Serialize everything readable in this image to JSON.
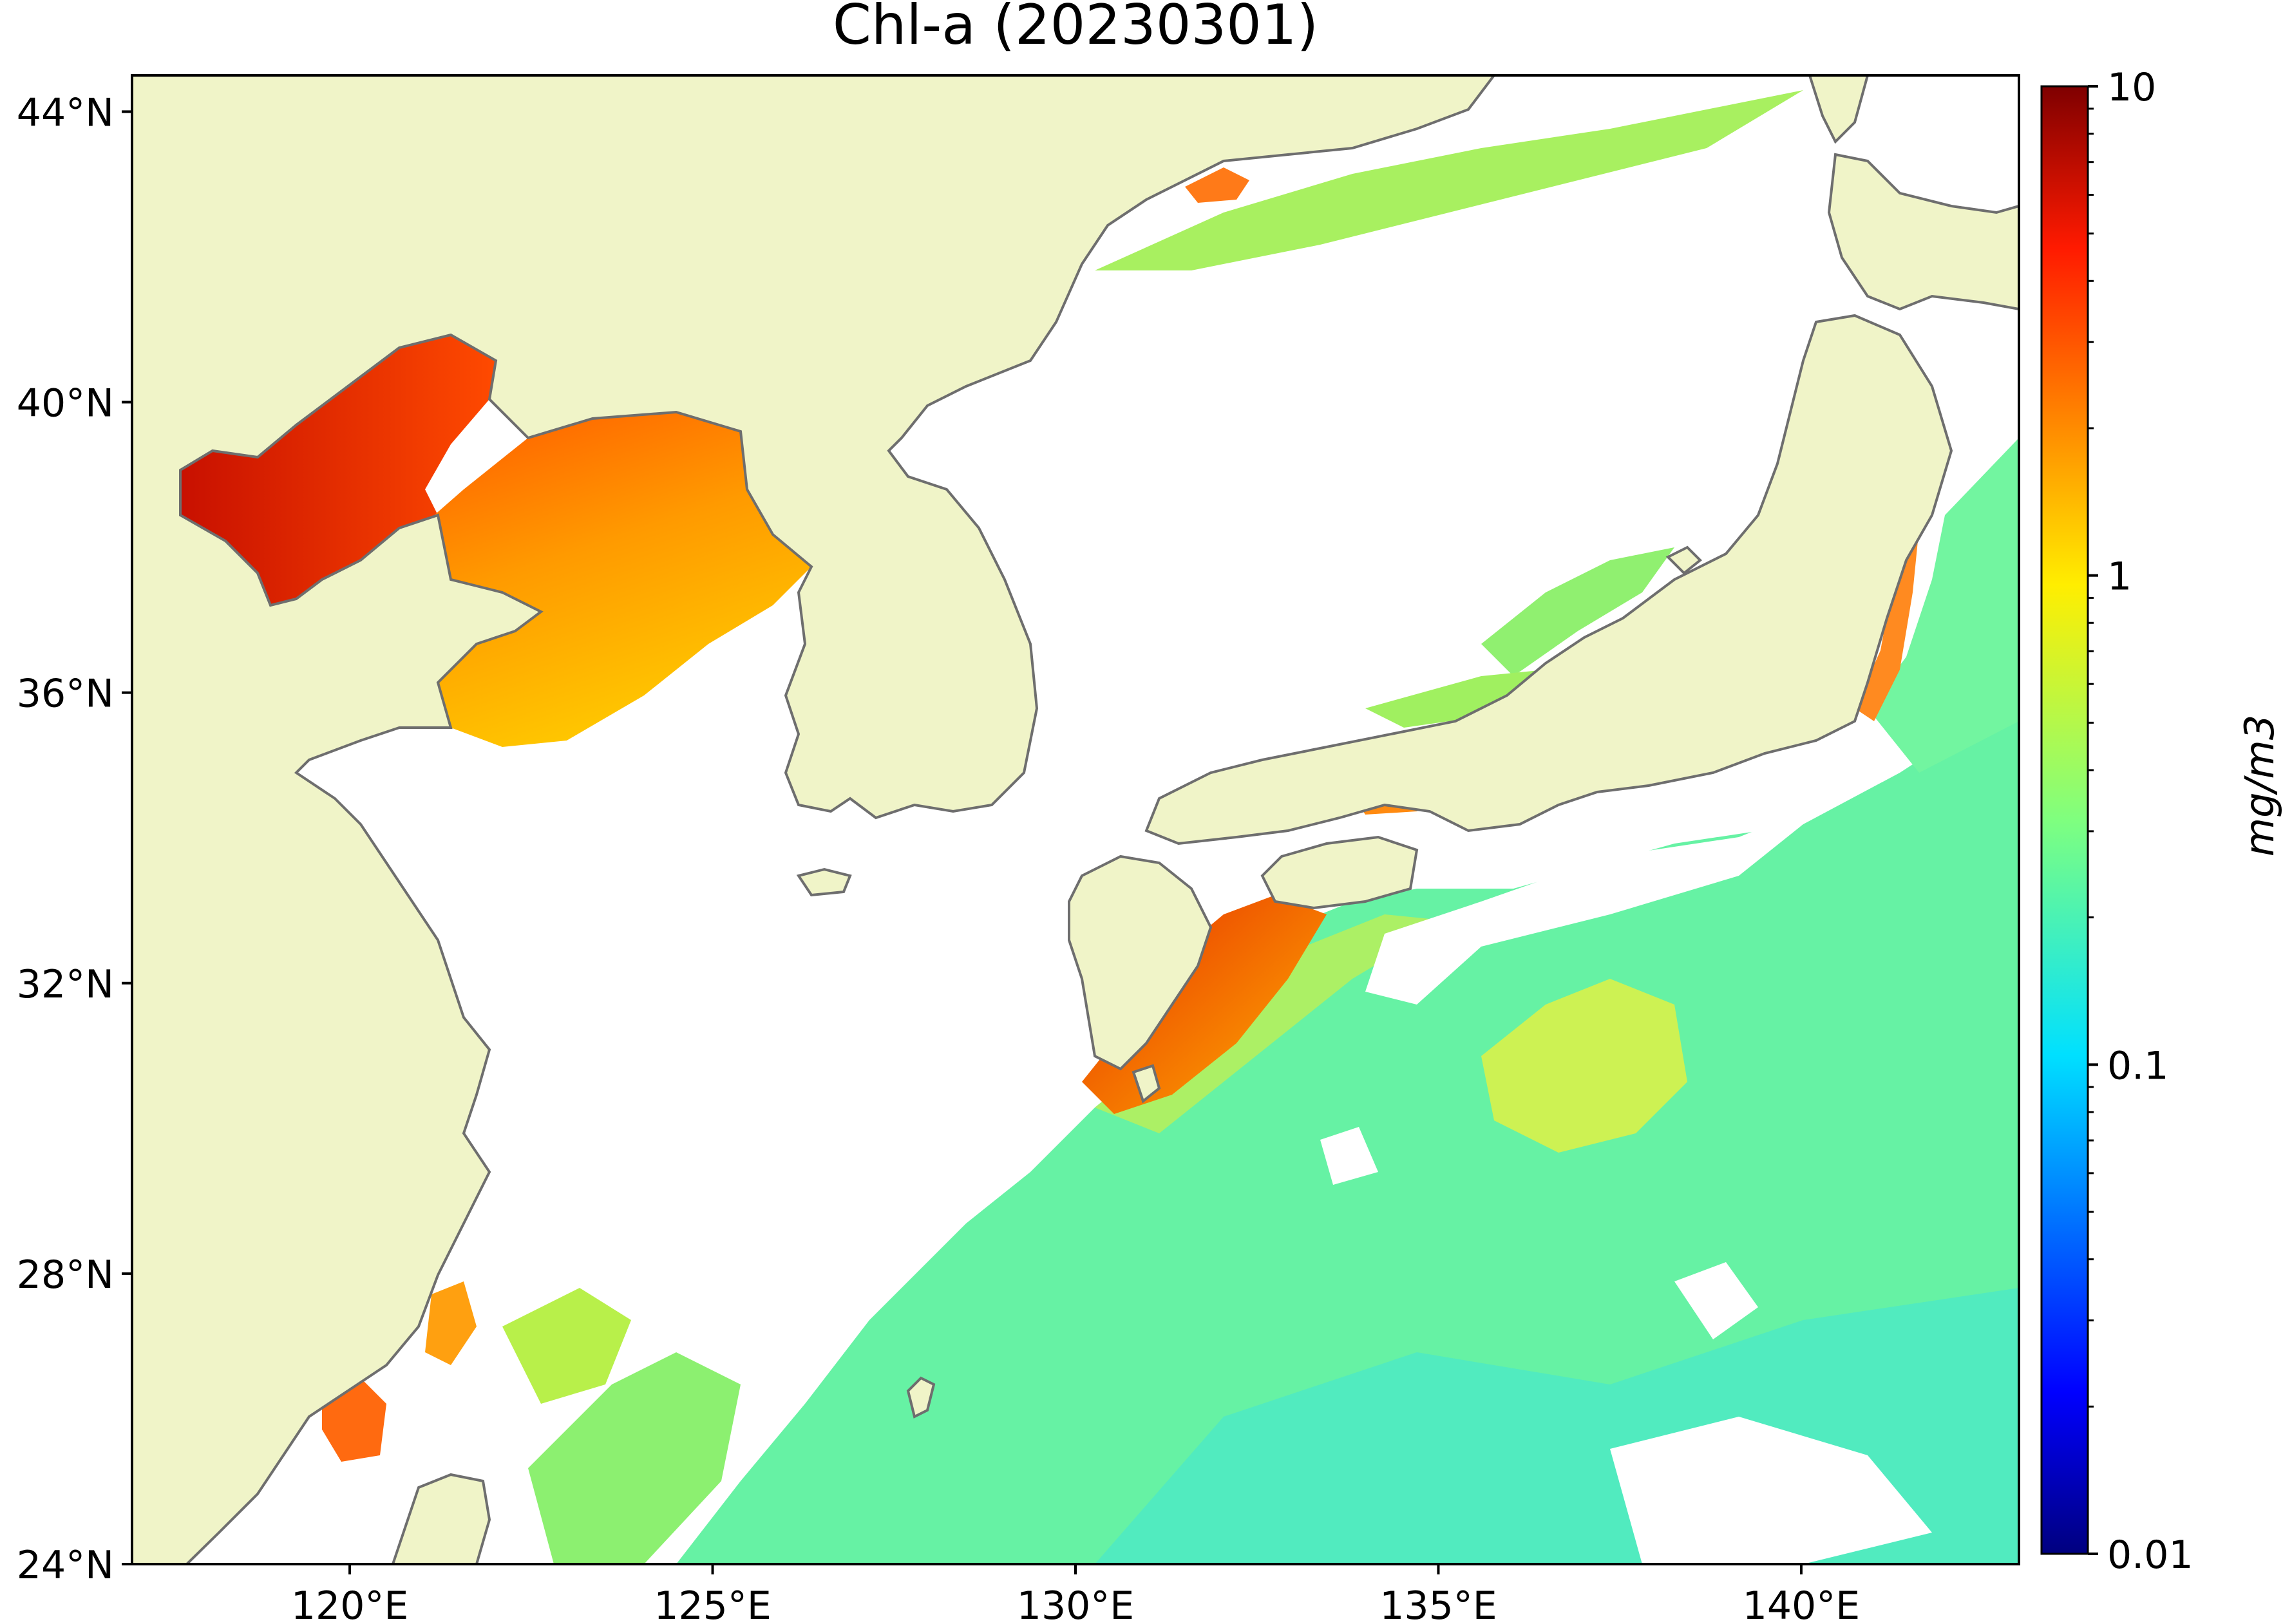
{
  "title": "Chl-a (20230301)",
  "map": {
    "lon_range": [
      117,
      143
    ],
    "lat_range": [
      24,
      44.5
    ],
    "land_color": "#f0f4c8",
    "ocean_no_data_color": "#ffffff",
    "coastline_color": "#6e6e6e",
    "lon_ticks": [
      {
        "value": 120,
        "label": "120°E"
      },
      {
        "value": 125,
        "label": "125°E"
      },
      {
        "value": 130,
        "label": "130°E"
      },
      {
        "value": 135,
        "label": "135°E"
      },
      {
        "value": 140,
        "label": "140°E"
      }
    ],
    "lat_ticks": [
      {
        "value": 44,
        "label": "44°N"
      },
      {
        "value": 40,
        "label": "40°N"
      },
      {
        "value": 36,
        "label": "36°N"
      },
      {
        "value": 32,
        "label": "32°N"
      },
      {
        "value": 28,
        "label": "28°N"
      },
      {
        "value": 24,
        "label": "24°N"
      }
    ]
  },
  "colorbar": {
    "scale": "log",
    "min": 0.01,
    "max": 10,
    "colormap": "jet",
    "unit_label": "mg/m3",
    "ticks": [
      {
        "value": 10,
        "label": "10"
      },
      {
        "value": 1,
        "label": "1"
      },
      {
        "value": 0.1,
        "label": "0.1"
      },
      {
        "value": 0.01,
        "label": "0.01"
      }
    ]
  }
}
